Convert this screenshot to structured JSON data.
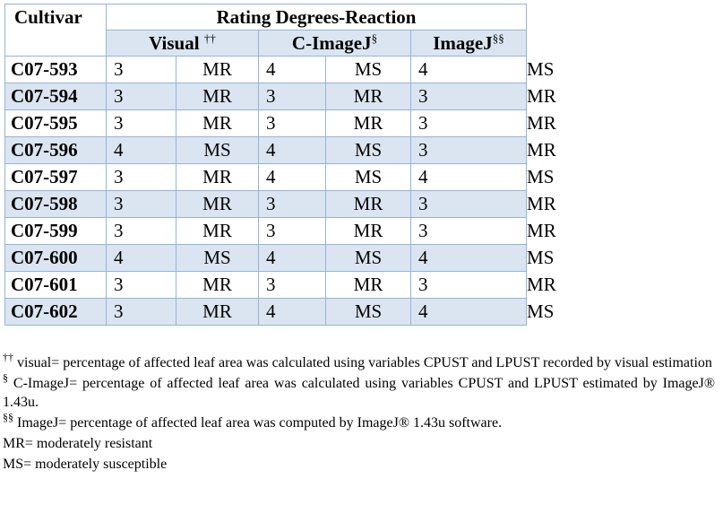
{
  "table": {
    "header": {
      "cultivar": "Cultivar",
      "group": "Rating Degrees-Reaction",
      "subcols": [
        {
          "name": "Visual",
          "sup": "††"
        },
        {
          "name": "C-ImageJ",
          "sup": "§"
        },
        {
          "name": "ImageJ",
          "sup": "§§"
        }
      ]
    },
    "rows": [
      {
        "cultivar": "C07-593",
        "v": [
          "3",
          "MR",
          "4",
          "MS",
          "4",
          "MS"
        ]
      },
      {
        "cultivar": "C07-594",
        "v": [
          "3",
          "MR",
          "3",
          "MR",
          "3",
          "MR"
        ]
      },
      {
        "cultivar": "C07-595",
        "v": [
          "3",
          "MR",
          "3",
          "MR",
          "3",
          "MR"
        ]
      },
      {
        "cultivar": "C07-596",
        "v": [
          "4",
          "MS",
          "4",
          "MS",
          "3",
          "MR"
        ]
      },
      {
        "cultivar": "C07-597",
        "v": [
          "3",
          "MR",
          "4",
          "MS",
          "4",
          "MS"
        ]
      },
      {
        "cultivar": "C07-598",
        "v": [
          "3",
          "MR",
          "3",
          "MR",
          "3",
          "MR"
        ]
      },
      {
        "cultivar": "C07-599",
        "v": [
          "3",
          "MR",
          "3",
          "MR",
          "3",
          "MR"
        ]
      },
      {
        "cultivar": "C07-600",
        "v": [
          "4",
          "MS",
          "4",
          "MS",
          "4",
          "MS"
        ]
      },
      {
        "cultivar": "C07-601",
        "v": [
          "3",
          "MR",
          "3",
          "MR",
          "3",
          "MR"
        ]
      },
      {
        "cultivar": "C07-602",
        "v": [
          "3",
          "MR",
          "4",
          "MS",
          "4",
          "MS"
        ]
      }
    ]
  },
  "notes": [
    {
      "sup": "††",
      "text": " visual= percentage of affected leaf area was calculated using variables CPUST and LPUST recorded by visual estimation"
    },
    {
      "sup": "§",
      "text": " C-ImageJ= percentage of affected leaf area was calculated using variables CPUST and LPUST estimated by ImageJ® 1.43u."
    },
    {
      "sup": "§§",
      "text": " ImageJ= percentage of affected leaf area was computed by ImageJ® 1.43u software."
    },
    {
      "sup": "",
      "text": "MR= moderately resistant"
    },
    {
      "sup": "",
      "text": "MS= moderately susceptible"
    }
  ]
}
